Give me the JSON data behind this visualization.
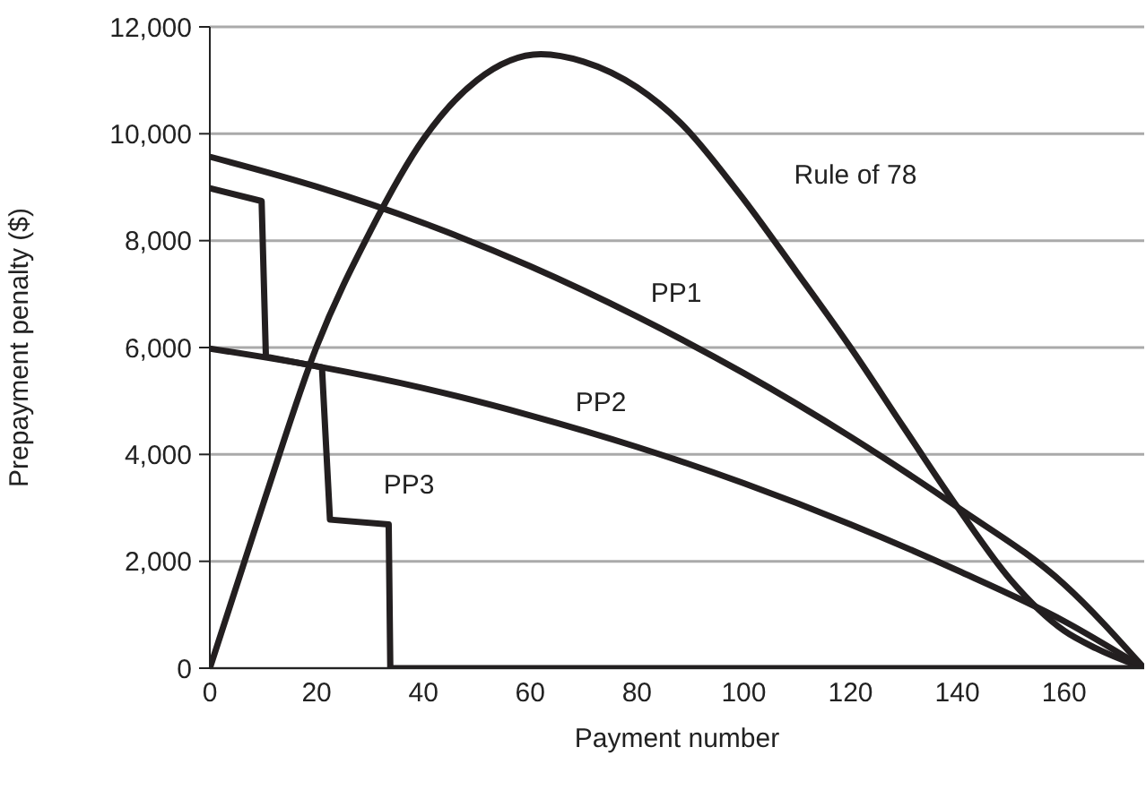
{
  "chart_data": {
    "type": "line",
    "xlabel": "Payment number",
    "ylabel": "Prepayment penalty ($)",
    "xlim": [
      0,
      175
    ],
    "xticks": [
      0,
      20,
      40,
      60,
      80,
      100,
      120,
      140,
      160
    ],
    "ylim": [
      0,
      12000
    ],
    "yticks": [
      0,
      {
        "value": 2000,
        "label": "2,000"
      },
      {
        "value": 4000,
        "label": "4,000"
      },
      {
        "value": 6000,
        "label": "6,000"
      },
      {
        "value": 8000,
        "label": "8,000"
      },
      {
        "value": 10000,
        "label": "10,000"
      },
      {
        "value": 12000,
        "label": "12,000"
      }
    ],
    "grid": "y",
    "legend": false,
    "marker": "none",
    "line_style": "solid",
    "series": [
      {
        "color": "#231f20",
        "x": [
          0,
          10,
          20,
          30,
          40,
          50,
          62,
          70,
          80,
          88,
          99,
          110,
          120,
          130,
          140,
          150,
          160,
          166,
          175
        ],
        "values": [
          0,
          3076,
          6017,
          8165,
          9900,
          11000,
          11490,
          11350,
          10870,
          10220,
          8900,
          7400,
          6000,
          4500,
          3015,
          1650,
          700,
          370,
          0
        ]
      },
      {
        "color": "#231f20",
        "x": [
          0,
          20,
          40,
          60,
          80,
          100,
          120,
          140,
          160,
          175
        ],
        "values": [
          9570,
          9010,
          8330,
          7520,
          6580,
          5520,
          4330,
          3015,
          1570,
          0
        ]
      },
      {
        "color": "#231f20",
        "x": [
          0,
          20,
          40,
          60,
          80,
          100,
          120,
          140,
          160,
          175
        ],
        "values": [
          5980,
          5650,
          5240,
          4730,
          4140,
          3460,
          2690,
          1830,
          880,
          0
        ]
      },
      {
        "color": "#231f20",
        "x": [
          0,
          9.7,
          10.5,
          21,
          22.5,
          33.5,
          33.8,
          175
        ],
        "values": [
          8980,
          8740,
          5830,
          5630,
          2780,
          2690,
          0,
          0
        ]
      }
    ],
    "annotations": [
      "Rule of 78",
      "PP1",
      "PP2",
      "PP3"
    ]
  }
}
